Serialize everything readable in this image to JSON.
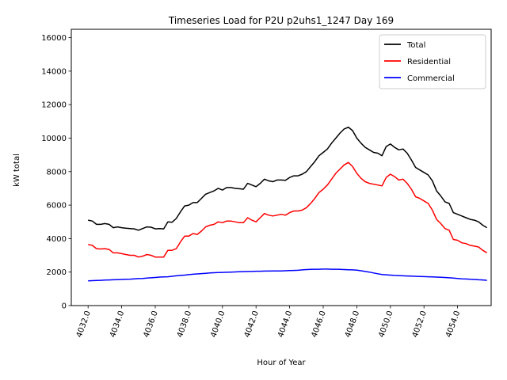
{
  "chart_data": {
    "type": "line",
    "title": "Timeseries Load for P2U p2uhs1_1247  Day 169",
    "xlabel": "Hour of Year",
    "ylabel": "kW total",
    "xlim": [
      4031.0,
      4056.0
    ],
    "ylim": [
      0,
      16500
    ],
    "x_ticks": [
      4032.0,
      4034.0,
      4036.0,
      4038.0,
      4040.0,
      4042.0,
      4044.0,
      4046.0,
      4048.0,
      4050.0,
      4052.0,
      4054.0
    ],
    "x_tick_labels": [
      "4032.0",
      "4034.0",
      "4036.0",
      "4038.0",
      "4040.0",
      "4042.0",
      "4044.0",
      "4046.0",
      "4048.0",
      "4050.0",
      "4052.0",
      "4054.0"
    ],
    "y_ticks": [
      0,
      2000,
      4000,
      6000,
      8000,
      10000,
      12000,
      14000,
      16000
    ],
    "y_tick_labels": [
      "0",
      "2000",
      "4000",
      "6000",
      "8000",
      "10000",
      "12000",
      "14000",
      "16000"
    ],
    "legend_position": "top-right",
    "series": [
      {
        "name": "Total",
        "color": "#000000",
        "x": [
          4032.0,
          4032.25,
          4032.5,
          4032.75,
          4033.0,
          4033.25,
          4033.5,
          4033.75,
          4034.0,
          4034.25,
          4034.5,
          4034.75,
          4035.0,
          4035.25,
          4035.5,
          4035.75,
          4036.0,
          4036.25,
          4036.5,
          4036.75,
          4037.0,
          4037.25,
          4037.5,
          4037.75,
          4038.0,
          4038.25,
          4038.5,
          4038.75,
          4039.0,
          4039.25,
          4039.5,
          4039.75,
          4040.0,
          4040.25,
          4040.5,
          4040.75,
          4041.0,
          4041.25,
          4041.5,
          4041.75,
          4042.0,
          4042.25,
          4042.5,
          4042.75,
          4043.0,
          4043.25,
          4043.5,
          4043.75,
          4044.0,
          4044.25,
          4044.5,
          4044.75,
          4045.0,
          4045.25,
          4045.5,
          4045.75,
          4046.0,
          4046.25,
          4046.5,
          4046.75,
          4047.0,
          4047.25,
          4047.5,
          4047.75,
          4048.0,
          4048.25,
          4048.5,
          4048.75,
          4049.0,
          4049.25,
          4049.5,
          4049.75,
          4050.0,
          4050.25,
          4050.5,
          4050.75,
          4051.0,
          4051.25,
          4051.5,
          4051.75,
          4052.0,
          4052.25,
          4052.5,
          4052.75,
          4053.0,
          4053.25,
          4053.5,
          4053.75,
          4054.0,
          4054.25,
          4054.5,
          4054.75,
          4055.0,
          4055.25,
          4055.5,
          4055.75
        ],
        "values": [
          5100,
          5050,
          4850,
          4850,
          4900,
          4850,
          4650,
          4700,
          4650,
          4620,
          4600,
          4580,
          4500,
          4600,
          4700,
          4680,
          4580,
          4600,
          4580,
          5000,
          4980,
          5200,
          5600,
          5950,
          6000,
          6150,
          6150,
          6400,
          6650,
          6750,
          6850,
          7000,
          6900,
          7050,
          7050,
          7000,
          6980,
          6950,
          7300,
          7200,
          7100,
          7300,
          7550,
          7450,
          7400,
          7500,
          7500,
          7480,
          7650,
          7750,
          7750,
          7850,
          8000,
          8300,
          8600,
          8950,
          9150,
          9350,
          9700,
          10000,
          10300,
          10550,
          10650,
          10450,
          10000,
          9700,
          9450,
          9300,
          9150,
          9100,
          8950,
          9500,
          9650,
          9450,
          9300,
          9350,
          9100,
          8700,
          8250,
          8100,
          7950,
          7800,
          7450,
          6850,
          6550,
          6200,
          6100,
          5550,
          5450,
          5350,
          5250,
          5150,
          5100,
          5000,
          4800,
          4650
        ]
      },
      {
        "name": "Residential",
        "color": "#ff0000",
        "x": [
          4032.0,
          4032.25,
          4032.5,
          4032.75,
          4033.0,
          4033.25,
          4033.5,
          4033.75,
          4034.0,
          4034.25,
          4034.5,
          4034.75,
          4035.0,
          4035.25,
          4035.5,
          4035.75,
          4036.0,
          4036.25,
          4036.5,
          4036.75,
          4037.0,
          4037.25,
          4037.5,
          4037.75,
          4038.0,
          4038.25,
          4038.5,
          4038.75,
          4039.0,
          4039.25,
          4039.5,
          4039.75,
          4040.0,
          4040.25,
          4040.5,
          4040.75,
          4041.0,
          4041.25,
          4041.5,
          4041.75,
          4042.0,
          4042.25,
          4042.5,
          4042.75,
          4043.0,
          4043.25,
          4043.5,
          4043.75,
          4044.0,
          4044.25,
          4044.5,
          4044.75,
          4045.0,
          4045.25,
          4045.5,
          4045.75,
          4046.0,
          4046.25,
          4046.5,
          4046.75,
          4047.0,
          4047.25,
          4047.5,
          4047.75,
          4048.0,
          4048.25,
          4048.5,
          4048.75,
          4049.0,
          4049.25,
          4049.5,
          4049.75,
          4050.0,
          4050.25,
          4050.5,
          4050.75,
          4051.0,
          4051.25,
          4051.5,
          4051.75,
          4052.0,
          4052.25,
          4052.5,
          4052.75,
          4053.0,
          4053.25,
          4053.5,
          4053.75,
          4054.0,
          4054.25,
          4054.5,
          4054.75,
          4055.0,
          4055.25,
          4055.5,
          4055.75
        ],
        "values": [
          3650,
          3600,
          3400,
          3380,
          3400,
          3350,
          3150,
          3150,
          3100,
          3050,
          3000,
          3000,
          2900,
          2950,
          3050,
          3000,
          2900,
          2900,
          2900,
          3300,
          3300,
          3400,
          3800,
          4150,
          4150,
          4300,
          4250,
          4450,
          4700,
          4800,
          4850,
          5000,
          4950,
          5050,
          5050,
          5000,
          4950,
          4950,
          5250,
          5100,
          5000,
          5250,
          5500,
          5400,
          5350,
          5400,
          5450,
          5400,
          5550,
          5650,
          5650,
          5700,
          5850,
          6100,
          6400,
          6750,
          6950,
          7200,
          7550,
          7900,
          8150,
          8400,
          8550,
          8300,
          7900,
          7600,
          7400,
          7300,
          7250,
          7200,
          7150,
          7650,
          7850,
          7700,
          7500,
          7550,
          7300,
          6950,
          6500,
          6400,
          6250,
          6100,
          5700,
          5150,
          4900,
          4600,
          4500,
          3950,
          3900,
          3750,
          3700,
          3600,
          3550,
          3500,
          3300,
          3150
        ]
      },
      {
        "name": "Commercial",
        "color": "#0000ff",
        "x": [
          4032.0,
          4032.25,
          4032.5,
          4032.75,
          4033.0,
          4033.25,
          4033.5,
          4033.75,
          4034.0,
          4034.25,
          4034.5,
          4034.75,
          4035.0,
          4035.25,
          4035.5,
          4035.75,
          4036.0,
          4036.25,
          4036.5,
          4036.75,
          4037.0,
          4037.25,
          4037.5,
          4037.75,
          4038.0,
          4038.25,
          4038.5,
          4038.75,
          4039.0,
          4039.25,
          4039.5,
          4039.75,
          4040.0,
          4040.25,
          4040.5,
          4040.75,
          4041.0,
          4041.25,
          4041.5,
          4041.75,
          4042.0,
          4042.25,
          4042.5,
          4042.75,
          4043.0,
          4043.25,
          4043.5,
          4043.75,
          4044.0,
          4044.25,
          4044.5,
          4044.75,
          4045.0,
          4045.25,
          4045.5,
          4045.75,
          4046.0,
          4046.25,
          4046.5,
          4046.75,
          4047.0,
          4047.25,
          4047.5,
          4047.75,
          4048.0,
          4048.25,
          4048.5,
          4048.75,
          4049.0,
          4049.25,
          4049.5,
          4049.75,
          4050.0,
          4050.25,
          4050.5,
          4050.75,
          4051.0,
          4051.25,
          4051.5,
          4051.75,
          4052.0,
          4052.25,
          4052.5,
          4052.75,
          4053.0,
          4053.25,
          4053.5,
          4053.75,
          4054.0,
          4054.25,
          4054.5,
          4054.75,
          4055.0,
          4055.25,
          4055.5,
          4055.75
        ],
        "values": [
          1480,
          1490,
          1500,
          1510,
          1520,
          1530,
          1540,
          1550,
          1560,
          1570,
          1580,
          1600,
          1610,
          1620,
          1640,
          1660,
          1680,
          1700,
          1710,
          1720,
          1750,
          1780,
          1800,
          1820,
          1850,
          1870,
          1890,
          1910,
          1930,
          1950,
          1960,
          1970,
          1980,
          1990,
          2000,
          2010,
          2020,
          2030,
          2040,
          2040,
          2050,
          2050,
          2060,
          2060,
          2070,
          2070,
          2070,
          2080,
          2090,
          2100,
          2110,
          2130,
          2150,
          2160,
          2170,
          2170,
          2180,
          2180,
          2170,
          2170,
          2160,
          2150,
          2140,
          2130,
          2120,
          2080,
          2040,
          2000,
          1950,
          1900,
          1860,
          1840,
          1820,
          1800,
          1790,
          1780,
          1770,
          1760,
          1750,
          1740,
          1730,
          1720,
          1710,
          1700,
          1690,
          1680,
          1660,
          1640,
          1620,
          1600,
          1590,
          1570,
          1560,
          1540,
          1530,
          1510
        ]
      }
    ]
  }
}
